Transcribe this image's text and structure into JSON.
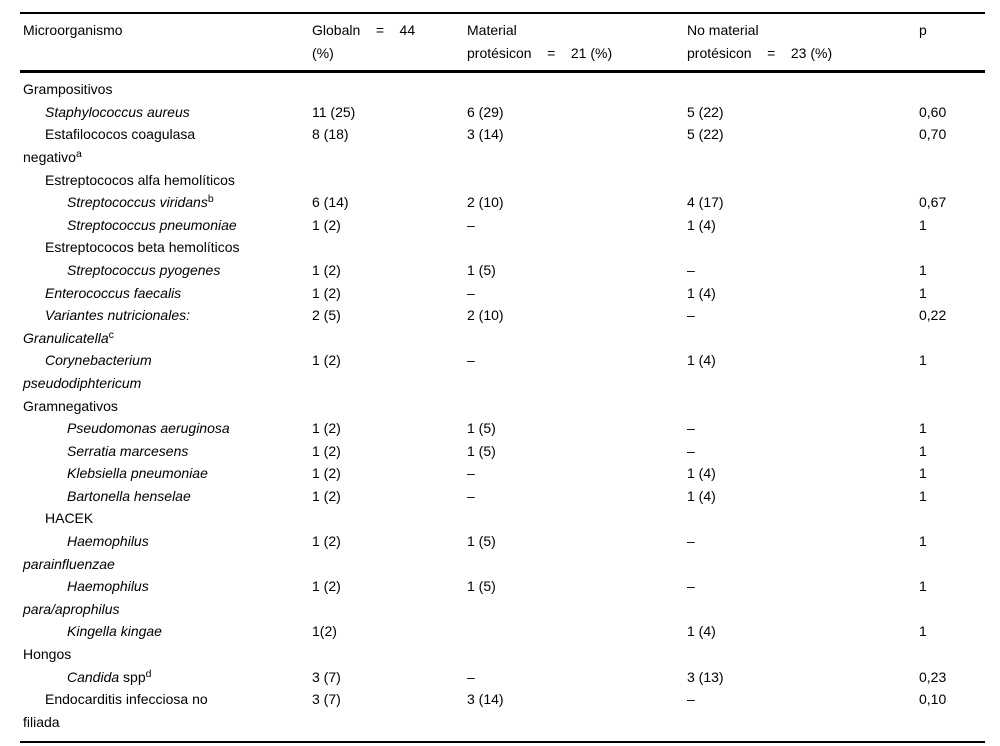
{
  "table": {
    "header": {
      "col_microorganism": "Microorganismo",
      "col_global": "Globaln    =    44\n(%)",
      "col_prosthetic": "Material\nprotésicon    =    21 (%)",
      "col_no_prosthetic": "No material\nprotésicon    =    23 (%)",
      "col_p": "p"
    },
    "rows": [
      {
        "name": "section-grampositivos",
        "indent": 0,
        "bold": true,
        "segments": [
          {
            "text": "Grampositivos"
          }
        ],
        "values": [
          "",
          "",
          "",
          ""
        ]
      },
      {
        "name": "staphylococcus-aureus",
        "indent": 1,
        "segments": [
          {
            "text": "Staphylococcus aureus",
            "italic": true
          }
        ],
        "values": [
          "11 (25)",
          "6 (29)",
          "5 (22)",
          "0,60"
        ]
      },
      {
        "name": "estafilococos-coagulasa-negativo",
        "indent": 1,
        "segments": [
          {
            "text": "Estafilococos coagulasa\nnegativo"
          },
          {
            "text": "a",
            "sup": true
          }
        ],
        "values": [
          "8 (18)",
          "3 (14)",
          "5 (22)",
          "0,70"
        ]
      },
      {
        "name": "estreptococos-alfa-hemoliticos",
        "indent": 1,
        "segments": [
          {
            "text": "Estreptococos alfa hemolíticos"
          }
        ],
        "values": [
          "",
          "",
          "",
          ""
        ]
      },
      {
        "name": "streptococcus-viridans",
        "indent": 2,
        "segments": [
          {
            "text": "Streptococcus viridans",
            "italic": true
          },
          {
            "text": "b",
            "sup": true
          }
        ],
        "values": [
          "6 (14)",
          "2 (10)",
          "4 (17)",
          "0,67"
        ]
      },
      {
        "name": "streptococcus-pneumoniae",
        "indent": 2,
        "segments": [
          {
            "text": "Streptococcus pneumoniae",
            "italic": true
          }
        ],
        "values": [
          "1 (2)",
          "–",
          "1 (4)",
          "1"
        ]
      },
      {
        "name": "estreptococos-beta-hemoliticos",
        "indent": 1,
        "segments": [
          {
            "text": "Estreptococos beta hemolíticos"
          }
        ],
        "values": [
          "",
          "",
          "",
          ""
        ]
      },
      {
        "name": "streptococcus-pyogenes",
        "indent": 2,
        "segments": [
          {
            "text": "Streptococcus pyogenes",
            "italic": true
          }
        ],
        "values": [
          "1 (2)",
          "1 (5)",
          "–",
          "1"
        ]
      },
      {
        "name": "enterococcus-faecalis",
        "indent": 1,
        "segments": [
          {
            "text": "Enterococcus faecalis",
            "italic": true
          }
        ],
        "values": [
          "1 (2)",
          "–",
          "1 (4)",
          "1"
        ]
      },
      {
        "name": "variantes-nutricionales-granulicatella",
        "indent": 1,
        "segments": [
          {
            "text": "Variantes nutricionales:\nGranulicatella",
            "italic": true
          },
          {
            "text": "c",
            "sup": true
          }
        ],
        "values": [
          "2 (5)",
          "2 (10)",
          "–",
          "0,22"
        ]
      },
      {
        "name": "corynebacterium-pseudodiphtericum",
        "indent": 1,
        "segments": [
          {
            "text": "Corynebacterium\npseudodiphtericum",
            "italic": true
          }
        ],
        "values": [
          "1 (2)",
          "–",
          "1 (4)",
          "1"
        ]
      },
      {
        "name": "section-gramnegativos",
        "indent": 0,
        "bold": true,
        "segments": [
          {
            "text": "Gramnegativos"
          }
        ],
        "values": [
          "",
          "",
          "",
          ""
        ]
      },
      {
        "name": "pseudomonas-aeruginosa",
        "indent": 2,
        "segments": [
          {
            "text": "Pseudomonas aeruginosa",
            "italic": true
          }
        ],
        "values": [
          "1 (2)",
          "1 (5)",
          "–",
          "1"
        ]
      },
      {
        "name": "serratia-marcesens",
        "indent": 2,
        "segments": [
          {
            "text": "Serratia marcesens",
            "italic": true
          }
        ],
        "values": [
          "1 (2)",
          "1 (5)",
          "–",
          "1"
        ]
      },
      {
        "name": "klebsiella-pneumoniae",
        "indent": 2,
        "segments": [
          {
            "text": "Klebsiella pneumoniae",
            "italic": true
          }
        ],
        "values": [
          "1 (2)",
          "–",
          "1 (4)",
          "1"
        ]
      },
      {
        "name": "bartonella-henselae",
        "indent": 2,
        "segments": [
          {
            "text": "Bartonella henselae",
            "italic": true
          }
        ],
        "values": [
          "1 (2)",
          "–",
          "1 (4)",
          "1"
        ]
      },
      {
        "name": "hacek",
        "indent": 1,
        "segments": [
          {
            "text": "HACEK"
          }
        ],
        "values": [
          "",
          "",
          "",
          ""
        ]
      },
      {
        "name": "haemophilus-parainfluenzae",
        "indent": 2,
        "segments": [
          {
            "text": "Haemophilus\nparainfluenzae",
            "italic": true
          }
        ],
        "values": [
          "1 (2)",
          "1 (5)",
          "–",
          "1"
        ]
      },
      {
        "name": "haemophilus-para-aprophilus",
        "indent": 2,
        "segments": [
          {
            "text": "Haemophilus\npara/aprophilus",
            "italic": true
          }
        ],
        "values": [
          "1 (2)",
          "1 (5)",
          "–",
          "1"
        ]
      },
      {
        "name": "kingella-kingae",
        "indent": 2,
        "segments": [
          {
            "text": "Kingella kingae",
            "italic": true
          }
        ],
        "values": [
          "1(2)",
          "",
          "1 (4)",
          "1"
        ]
      },
      {
        "name": "section-hongos",
        "indent": 0,
        "bold": true,
        "segments": [
          {
            "text": "Hongos"
          }
        ],
        "values": [
          "",
          "",
          "",
          ""
        ]
      },
      {
        "name": "candida-spp",
        "indent": 2,
        "segments": [
          {
            "text": "Candida",
            "italic": true
          },
          {
            "text": " spp"
          },
          {
            "text": "d",
            "sup": true
          }
        ],
        "values": [
          "3 (7)",
          "–",
          "3 (13)",
          "0,23"
        ]
      },
      {
        "name": "endocarditis-infecciosa-no-filiada",
        "indent": 1,
        "segments": [
          {
            "text": "Endocarditis infecciosa no\nfiliada"
          }
        ],
        "values": [
          "3 (7)",
          "3 (14)",
          "–",
          "0,10"
        ]
      }
    ]
  }
}
